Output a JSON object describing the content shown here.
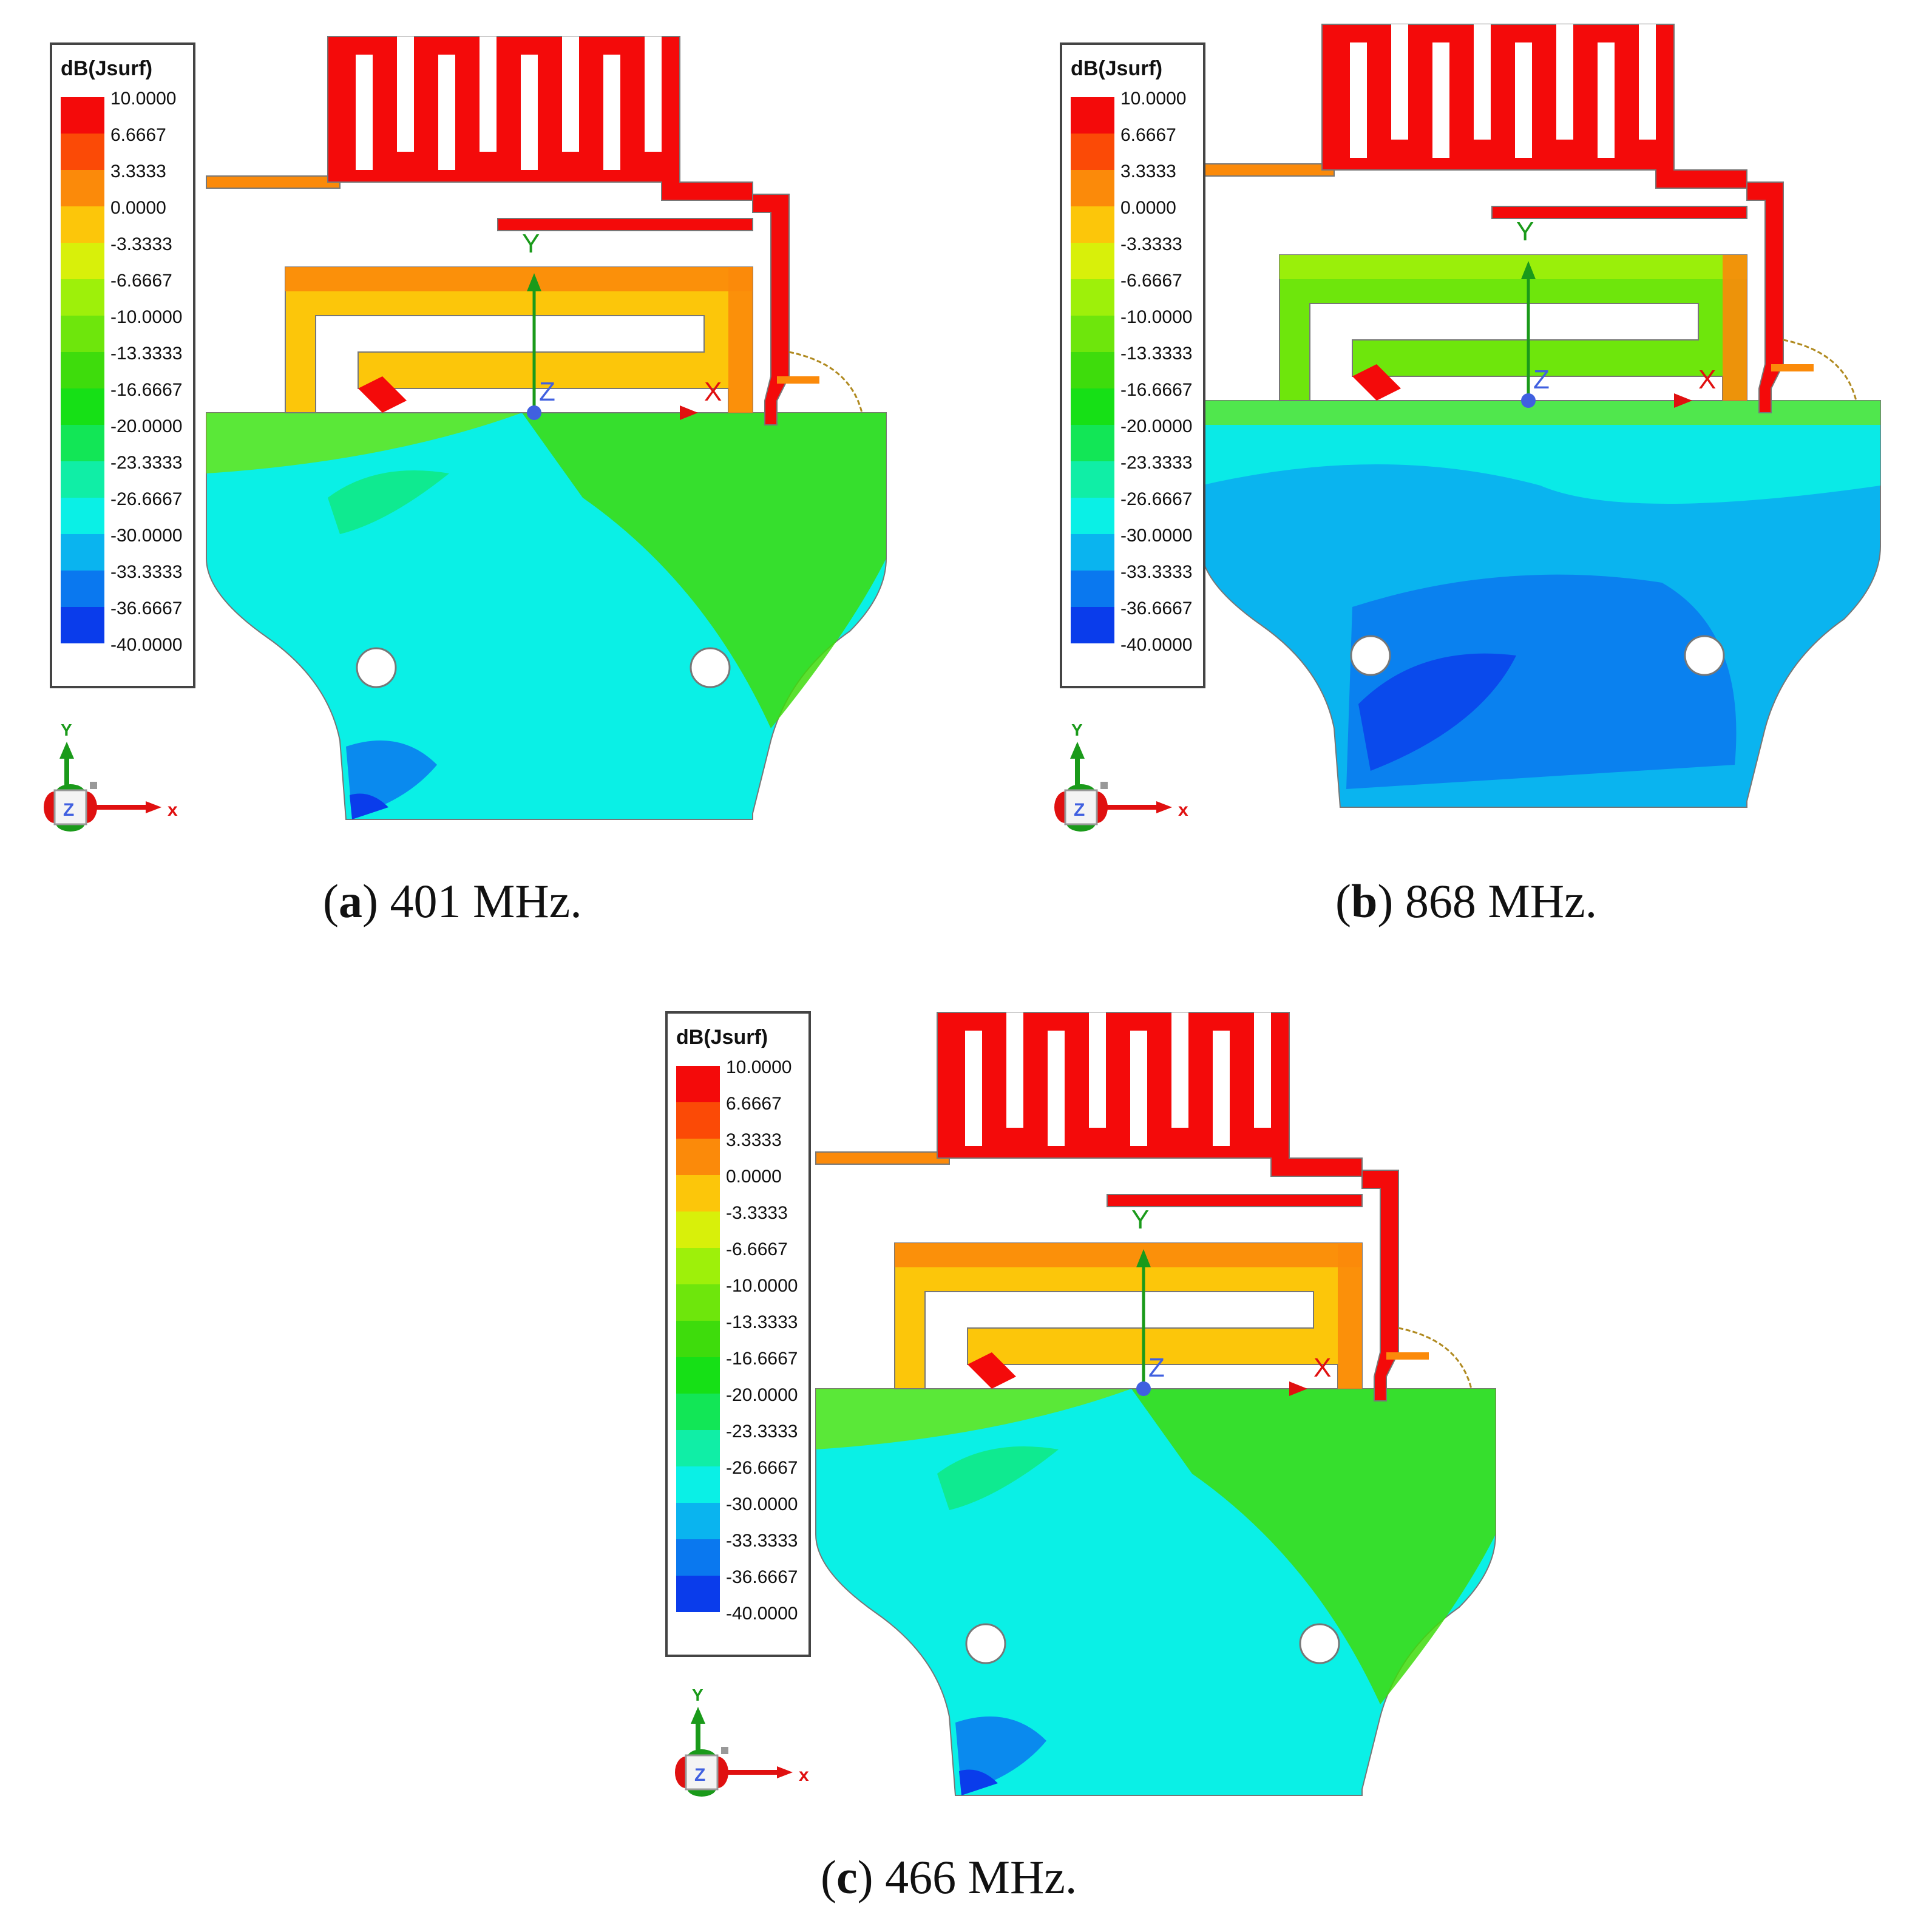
{
  "legend": {
    "title": "dB(Jsurf)",
    "labels": [
      "10.0000",
      "6.6667",
      "3.3333",
      "0.0000",
      "-3.3333",
      "-6.6667",
      "-10.0000",
      "-13.3333",
      "-16.6667",
      "-20.0000",
      "-23.3333",
      "-26.6667",
      "-30.0000",
      "-33.3333",
      "-36.6667",
      "-40.0000"
    ],
    "colors": [
      "#f40a0a",
      "#fb4a06",
      "#fb8a0a",
      "#fcc60a",
      "#d8f00a",
      "#9ef00a",
      "#6ee60c",
      "#3edc0c",
      "#16e016",
      "#12e656",
      "#10eea6",
      "#0af0e6",
      "#0ab4ef",
      "#0a78ef",
      "#0a3ceb",
      "#0a0af0"
    ]
  },
  "axes": {
    "x": "X",
    "y": "Y",
    "z": "Z"
  },
  "triad": {
    "x": "x",
    "y": "Y",
    "z": "Z"
  },
  "colors": {
    "radiator_hot": "#f40a0a",
    "orange": "#fb8a0a",
    "yellow": "#fcc60a",
    "green": "#3edc0c",
    "light_green": "#6ee60c",
    "cyan": "#0af0e6",
    "sky_blue": "#0ab4ef",
    "blue": "#0a78ef",
    "deep_blue": "#0a3ceb",
    "axis_green": "#1a9a1a",
    "axis_red": "#e01010",
    "axis_blue": "#4060e0"
  },
  "panels": [
    {
      "id": "a",
      "letter": "a",
      "caption_text": " 401 MHz.",
      "leftClose": "(",
      "rightClose": ")"
    },
    {
      "id": "b",
      "letter": "b",
      "caption_text": " 868 MHz.",
      "leftClose": "(",
      "rightClose": ")"
    },
    {
      "id": "c",
      "letter": "c",
      "caption_text": " 466 MHz.",
      "leftClose": "(",
      "rightClose": ")"
    }
  ]
}
